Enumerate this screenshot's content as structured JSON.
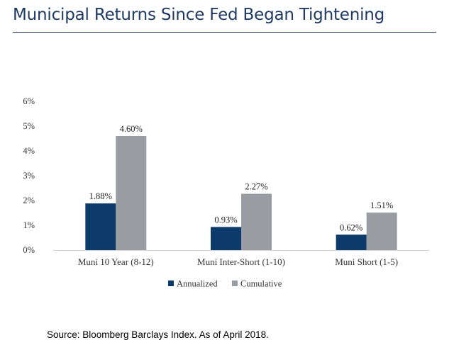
{
  "header": {
    "title": "Municipal Returns Since Fed Began Tightening"
  },
  "footer": {
    "source": "Source: Bloomberg Barclays Index. As of April 2018."
  },
  "chart_data": {
    "type": "bar",
    "categories": [
      "Muni 10 Year (8-12)",
      "Muni Inter-Short (1-10)",
      "Muni Short (1-5)"
    ],
    "series": [
      {
        "name": "Annualized",
        "values": [
          1.88,
          0.93,
          0.62
        ],
        "labels": [
          "1.88%",
          "0.93%",
          "0.62%"
        ],
        "color": "#0b3a6b"
      },
      {
        "name": "Cumulative",
        "values": [
          4.6,
          2.27,
          1.51
        ],
        "labels": [
          "4.60%",
          "2.27%",
          "1.51%"
        ],
        "color": "#999da2"
      }
    ],
    "ylim": [
      0,
      6
    ],
    "yticks": [
      0,
      1,
      2,
      3,
      4,
      5,
      6
    ],
    "ytick_labels": [
      "0%",
      "1%",
      "2%",
      "3%",
      "4%",
      "5%",
      "6%"
    ],
    "title": "",
    "xlabel": "",
    "ylabel": "",
    "grid": false,
    "legend_position": "bottom-center"
  }
}
